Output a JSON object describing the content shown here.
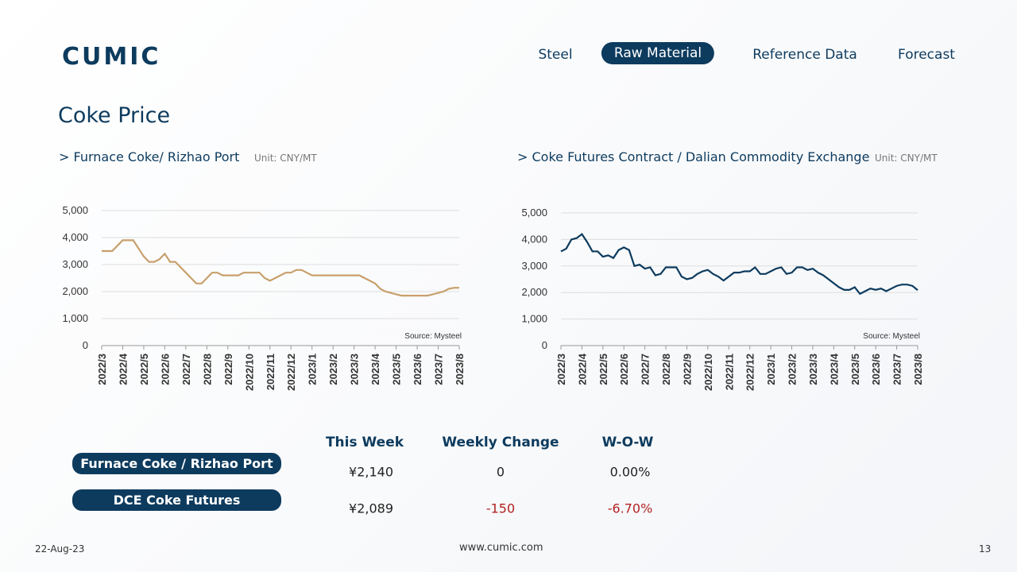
{
  "logo": "CUMIC",
  "nav": [
    "Steel",
    "Raw Material",
    "Reference Data",
    "Forecast"
  ],
  "nav_active": 1,
  "title": "Coke Price",
  "chart_data": [
    {
      "type": "line",
      "title": "> Furnace Coke/ Rizhao Port",
      "subtitle": "Unit: CNY/MT",
      "annotation": "Source: Mysteel",
      "x": [
        0,
        0.25,
        0.5,
        0.75,
        1,
        1.25,
        1.5,
        1.75,
        2,
        2.25,
        2.5,
        2.75,
        3,
        3.25,
        3.5,
        3.75,
        4,
        4.25,
        4.5,
        4.75,
        5,
        5.25,
        5.5,
        5.75,
        6,
        6.25,
        6.5,
        6.75,
        7,
        7.25,
        7.5,
        7.75,
        8,
        8.25,
        8.5,
        8.75,
        9,
        9.25,
        9.5,
        9.75,
        10,
        10.25,
        10.5,
        10.75,
        11,
        11.25,
        11.5,
        11.75,
        12,
        12.25,
        12.5,
        12.75,
        13,
        13.25,
        13.5,
        13.75,
        14,
        14.25,
        14.5,
        14.75,
        15,
        15.25,
        15.5,
        15.75,
        16,
        16.25,
        16.5,
        16.75,
        17
      ],
      "series": [
        {
          "color": "#c8a06c",
          "values": [
            3500,
            3500,
            3500,
            3700,
            3900,
            3900,
            3900,
            3600,
            3300,
            3100,
            3100,
            3200,
            3400,
            3100,
            3100,
            2900,
            2700,
            2500,
            2300,
            2300,
            2500,
            2700,
            2700,
            2600,
            2600,
            2600,
            2600,
            2700,
            2700,
            2700,
            2700,
            2500,
            2400,
            2500,
            2600,
            2700,
            2700,
            2800,
            2800,
            2700,
            2600,
            2600,
            2600,
            2600,
            2600,
            2600,
            2600,
            2600,
            2600,
            2600,
            2500,
            2400,
            2300,
            2100,
            2000,
            1950,
            1900,
            1850,
            1850,
            1850,
            1850,
            1850,
            1850,
            1900,
            1950,
            2000,
            2100,
            2140,
            2140
          ]
        }
      ],
      "xlim": [
        0,
        17
      ],
      "xticks": [
        {
          "value": 0,
          "label": "2022/3"
        },
        {
          "value": 1,
          "label": "2022/4"
        },
        {
          "value": 2,
          "label": "2022/5"
        },
        {
          "value": 3,
          "label": "2022/6"
        },
        {
          "value": 4,
          "label": "2022/7"
        },
        {
          "value": 5,
          "label": "2022/8"
        },
        {
          "value": 6,
          "label": "2022/9"
        },
        {
          "value": 7,
          "label": "2022/10"
        },
        {
          "value": 8,
          "label": "2022/11"
        },
        {
          "value": 9,
          "label": "2022/12"
        },
        {
          "value": 10,
          "label": "2023/1"
        },
        {
          "value": 11,
          "label": "2023/2"
        },
        {
          "value": 12,
          "label": "2023/3"
        },
        {
          "value": 13,
          "label": "2023/4"
        },
        {
          "value": 14,
          "label": "2023/5"
        },
        {
          "value": 15,
          "label": "2023/6"
        },
        {
          "value": 16,
          "label": "2023/7"
        },
        {
          "value": 17,
          "label": "2023/8"
        }
      ],
      "ylim": [
        0,
        5000
      ],
      "yticks": [
        0,
        {
          "value": 1000,
          "label": "1,000"
        },
        {
          "value": 2000,
          "label": "2,000"
        },
        {
          "value": 3000,
          "label": "3,000"
        },
        {
          "value": 4000,
          "label": "4,000"
        },
        {
          "value": 5000,
          "label": "5,000"
        }
      ],
      "grid": true
    },
    {
      "type": "line",
      "title": "> Coke Futures Contract / Dalian Commodity Exchange",
      "subtitle": "Unit: CNY/MT",
      "annotation": "Source: Mysteel",
      "x": [
        0,
        0.25,
        0.5,
        0.75,
        1,
        1.25,
        1.5,
        1.75,
        2,
        2.25,
        2.5,
        2.75,
        3,
        3.25,
        3.5,
        3.75,
        4,
        4.25,
        4.5,
        4.75,
        5,
        5.25,
        5.5,
        5.75,
        6,
        6.25,
        6.5,
        6.75,
        7,
        7.25,
        7.5,
        7.75,
        8,
        8.25,
        8.5,
        8.75,
        9,
        9.25,
        9.5,
        9.75,
        10,
        10.25,
        10.5,
        10.75,
        11,
        11.25,
        11.5,
        11.75,
        12,
        12.25,
        12.5,
        12.75,
        13,
        13.25,
        13.5,
        13.75,
        14,
        14.25,
        14.5,
        14.75,
        15,
        15.25,
        15.5,
        15.75,
        16,
        16.25,
        16.5,
        16.75,
        17
      ],
      "series": [
        {
          "color": "#0d3b5e",
          "values": [
            3550,
            3650,
            4000,
            4050,
            4200,
            3900,
            3550,
            3550,
            3350,
            3400,
            3300,
            3600,
            3700,
            3600,
            3000,
            3050,
            2900,
            2950,
            2650,
            2700,
            2950,
            2950,
            2950,
            2600,
            2500,
            2550,
            2700,
            2800,
            2850,
            2700,
            2600,
            2450,
            2600,
            2750,
            2750,
            2800,
            2800,
            2950,
            2700,
            2700,
            2800,
            2900,
            2950,
            2700,
            2750,
            2950,
            2950,
            2850,
            2900,
            2750,
            2650,
            2500,
            2350,
            2200,
            2100,
            2100,
            2200,
            1950,
            2050,
            2150,
            2100,
            2150,
            2050,
            2150,
            2250,
            2300,
            2300,
            2250,
            2089
          ]
        }
      ],
      "xlim": [
        0,
        17
      ],
      "xticks": [
        {
          "value": 0,
          "label": "2022/3"
        },
        {
          "value": 1,
          "label": "2022/4"
        },
        {
          "value": 2,
          "label": "2022/5"
        },
        {
          "value": 3,
          "label": "2022/6"
        },
        {
          "value": 4,
          "label": "2022/7"
        },
        {
          "value": 5,
          "label": "2022/8"
        },
        {
          "value": 6,
          "label": "2022/9"
        },
        {
          "value": 7,
          "label": "2022/10"
        },
        {
          "value": 8,
          "label": "2022/11"
        },
        {
          "value": 9,
          "label": "2022/12"
        },
        {
          "value": 10,
          "label": "2023/1"
        },
        {
          "value": 11,
          "label": "2023/2"
        },
        {
          "value": 12,
          "label": "2023/3"
        },
        {
          "value": 13,
          "label": "2023/4"
        },
        {
          "value": 14,
          "label": "2023/5"
        },
        {
          "value": 15,
          "label": "2023/6"
        },
        {
          "value": 16,
          "label": "2023/7"
        },
        {
          "value": 17,
          "label": "2023/8"
        }
      ],
      "ylim": [
        0,
        5000
      ],
      "yticks": [
        0,
        {
          "value": 1000,
          "label": "1,000"
        },
        {
          "value": 2000,
          "label": "2,000"
        },
        {
          "value": 3000,
          "label": "3,000"
        },
        {
          "value": 4000,
          "label": "4,000"
        },
        {
          "value": 5000,
          "label": "5,000"
        }
      ],
      "grid": true
    }
  ],
  "table": {
    "headers": [
      "This Week",
      "Weekly Change",
      "W-O-W"
    ],
    "rows": [
      {
        "label": "Furnace Coke / Rizhao Port",
        "cells": [
          "¥2,140",
          "0",
          "0.00%"
        ]
      },
      {
        "label": "DCE Coke Futures",
        "cells": [
          "¥2,089",
          "-150",
          "-6.70%"
        ]
      }
    ]
  },
  "footer": {
    "date": "22-Aug-23",
    "site": "www.cumic.com",
    "page": "13"
  }
}
